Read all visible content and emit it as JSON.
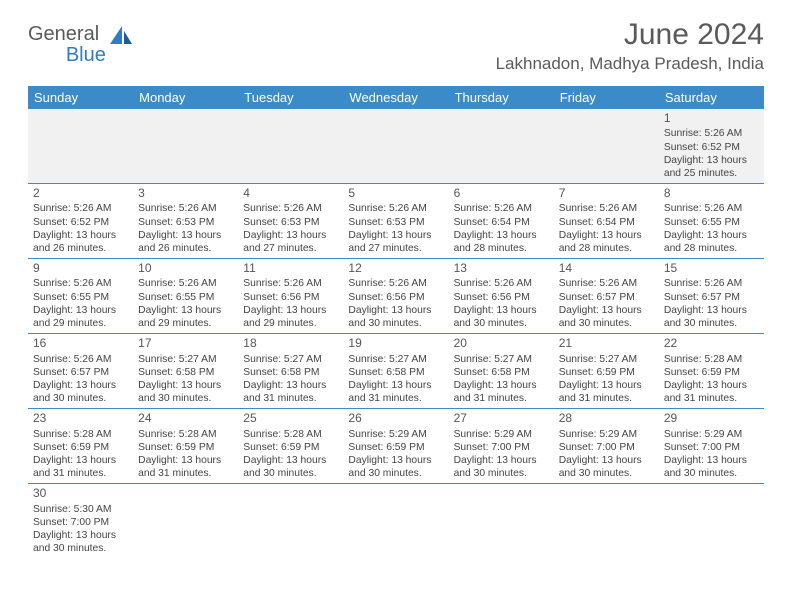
{
  "logo": {
    "word1": "General",
    "word2": "Blue"
  },
  "header": {
    "month_title": "June 2024",
    "location": "Lakhnadon, Madhya Pradesh, India"
  },
  "day_headers": [
    "Sunday",
    "Monday",
    "Tuesday",
    "Wednesday",
    "Thursday",
    "Friday",
    "Saturday"
  ],
  "colors": {
    "header_bg": "#3b8bc9",
    "header_fg": "#ffffff",
    "rule": "#3b8bc9",
    "firstrow_bg": "#f1f1f1"
  },
  "weeks": [
    [
      null,
      null,
      null,
      null,
      null,
      null,
      {
        "n": "1",
        "sr": "Sunrise: 5:26 AM",
        "ss": "Sunset: 6:52 PM",
        "dl": "Daylight: 13 hours and 25 minutes."
      }
    ],
    [
      {
        "n": "2",
        "sr": "Sunrise: 5:26 AM",
        "ss": "Sunset: 6:52 PM",
        "dl": "Daylight: 13 hours and 26 minutes."
      },
      {
        "n": "3",
        "sr": "Sunrise: 5:26 AM",
        "ss": "Sunset: 6:53 PM",
        "dl": "Daylight: 13 hours and 26 minutes."
      },
      {
        "n": "4",
        "sr": "Sunrise: 5:26 AM",
        "ss": "Sunset: 6:53 PM",
        "dl": "Daylight: 13 hours and 27 minutes."
      },
      {
        "n": "5",
        "sr": "Sunrise: 5:26 AM",
        "ss": "Sunset: 6:53 PM",
        "dl": "Daylight: 13 hours and 27 minutes."
      },
      {
        "n": "6",
        "sr": "Sunrise: 5:26 AM",
        "ss": "Sunset: 6:54 PM",
        "dl": "Daylight: 13 hours and 28 minutes."
      },
      {
        "n": "7",
        "sr": "Sunrise: 5:26 AM",
        "ss": "Sunset: 6:54 PM",
        "dl": "Daylight: 13 hours and 28 minutes."
      },
      {
        "n": "8",
        "sr": "Sunrise: 5:26 AM",
        "ss": "Sunset: 6:55 PM",
        "dl": "Daylight: 13 hours and 28 minutes."
      }
    ],
    [
      {
        "n": "9",
        "sr": "Sunrise: 5:26 AM",
        "ss": "Sunset: 6:55 PM",
        "dl": "Daylight: 13 hours and 29 minutes."
      },
      {
        "n": "10",
        "sr": "Sunrise: 5:26 AM",
        "ss": "Sunset: 6:55 PM",
        "dl": "Daylight: 13 hours and 29 minutes."
      },
      {
        "n": "11",
        "sr": "Sunrise: 5:26 AM",
        "ss": "Sunset: 6:56 PM",
        "dl": "Daylight: 13 hours and 29 minutes."
      },
      {
        "n": "12",
        "sr": "Sunrise: 5:26 AM",
        "ss": "Sunset: 6:56 PM",
        "dl": "Daylight: 13 hours and 30 minutes."
      },
      {
        "n": "13",
        "sr": "Sunrise: 5:26 AM",
        "ss": "Sunset: 6:56 PM",
        "dl": "Daylight: 13 hours and 30 minutes."
      },
      {
        "n": "14",
        "sr": "Sunrise: 5:26 AM",
        "ss": "Sunset: 6:57 PM",
        "dl": "Daylight: 13 hours and 30 minutes."
      },
      {
        "n": "15",
        "sr": "Sunrise: 5:26 AM",
        "ss": "Sunset: 6:57 PM",
        "dl": "Daylight: 13 hours and 30 minutes."
      }
    ],
    [
      {
        "n": "16",
        "sr": "Sunrise: 5:26 AM",
        "ss": "Sunset: 6:57 PM",
        "dl": "Daylight: 13 hours and 30 minutes."
      },
      {
        "n": "17",
        "sr": "Sunrise: 5:27 AM",
        "ss": "Sunset: 6:58 PM",
        "dl": "Daylight: 13 hours and 30 minutes."
      },
      {
        "n": "18",
        "sr": "Sunrise: 5:27 AM",
        "ss": "Sunset: 6:58 PM",
        "dl": "Daylight: 13 hours and 31 minutes."
      },
      {
        "n": "19",
        "sr": "Sunrise: 5:27 AM",
        "ss": "Sunset: 6:58 PM",
        "dl": "Daylight: 13 hours and 31 minutes."
      },
      {
        "n": "20",
        "sr": "Sunrise: 5:27 AM",
        "ss": "Sunset: 6:58 PM",
        "dl": "Daylight: 13 hours and 31 minutes."
      },
      {
        "n": "21",
        "sr": "Sunrise: 5:27 AM",
        "ss": "Sunset: 6:59 PM",
        "dl": "Daylight: 13 hours and 31 minutes."
      },
      {
        "n": "22",
        "sr": "Sunrise: 5:28 AM",
        "ss": "Sunset: 6:59 PM",
        "dl": "Daylight: 13 hours and 31 minutes."
      }
    ],
    [
      {
        "n": "23",
        "sr": "Sunrise: 5:28 AM",
        "ss": "Sunset: 6:59 PM",
        "dl": "Daylight: 13 hours and 31 minutes."
      },
      {
        "n": "24",
        "sr": "Sunrise: 5:28 AM",
        "ss": "Sunset: 6:59 PM",
        "dl": "Daylight: 13 hours and 31 minutes."
      },
      {
        "n": "25",
        "sr": "Sunrise: 5:28 AM",
        "ss": "Sunset: 6:59 PM",
        "dl": "Daylight: 13 hours and 30 minutes."
      },
      {
        "n": "26",
        "sr": "Sunrise: 5:29 AM",
        "ss": "Sunset: 6:59 PM",
        "dl": "Daylight: 13 hours and 30 minutes."
      },
      {
        "n": "27",
        "sr": "Sunrise: 5:29 AM",
        "ss": "Sunset: 7:00 PM",
        "dl": "Daylight: 13 hours and 30 minutes."
      },
      {
        "n": "28",
        "sr": "Sunrise: 5:29 AM",
        "ss": "Sunset: 7:00 PM",
        "dl": "Daylight: 13 hours and 30 minutes."
      },
      {
        "n": "29",
        "sr": "Sunrise: 5:29 AM",
        "ss": "Sunset: 7:00 PM",
        "dl": "Daylight: 13 hours and 30 minutes."
      }
    ],
    [
      {
        "n": "30",
        "sr": "Sunrise: 5:30 AM",
        "ss": "Sunset: 7:00 PM",
        "dl": "Daylight: 13 hours and 30 minutes."
      },
      null,
      null,
      null,
      null,
      null,
      null
    ]
  ]
}
